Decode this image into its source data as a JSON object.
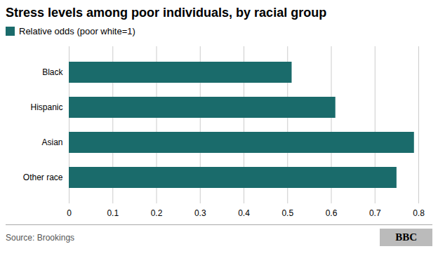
{
  "chart_data": {
    "type": "bar",
    "orientation": "horizontal",
    "title": "Stress levels among poor individuals, by racial group",
    "categories": [
      "Black",
      "Hispanic",
      "Asian",
      "Other race"
    ],
    "series": [
      {
        "name": "Relative odds (poor white=1)",
        "color": "#1a6b6b",
        "values": [
          0.51,
          0.61,
          0.79,
          0.75
        ]
      }
    ],
    "xlim": [
      0,
      0.8
    ],
    "xticks": [
      0,
      0.1,
      0.2,
      0.3,
      0.4,
      0.5,
      0.6,
      0.7,
      0.8
    ],
    "grid": true,
    "legend": "top-left",
    "caption": "Source: Brookings",
    "annotations": [
      "BBC"
    ]
  }
}
